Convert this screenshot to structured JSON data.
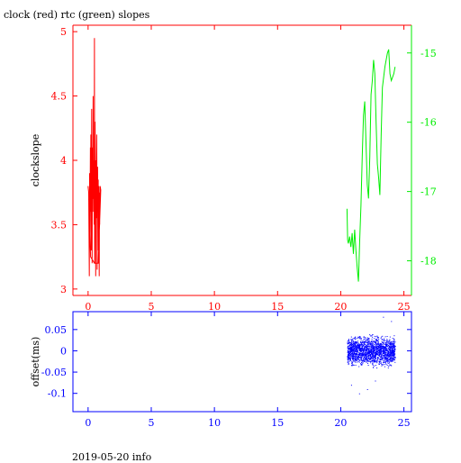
{
  "title": "clock (red) rtc (green) slopes",
  "footer": "2019-05-20 info",
  "colors": {
    "clock": "#ff0000",
    "rtc": "#00ee00",
    "offset": "#0000ff",
    "frame_top_left": "#ff0000",
    "frame_top_right": "#00ee00",
    "frame_bottom": "#0000ff",
    "text": "#000000"
  },
  "chart_data": [
    {
      "type": "line",
      "panel": "top",
      "xlabel": "",
      "ylabel": "clockslope",
      "xlim": [
        -1.2,
        25.6
      ],
      "ylim": [
        2.95,
        5.05
      ],
      "y2lim": [
        -18.5,
        -14.6
      ],
      "xticks": [
        "0",
        "5",
        "10",
        "15",
        "20",
        "25"
      ],
      "yticks_left": [
        "3",
        "3.5",
        "4",
        "4.5",
        "5"
      ],
      "yticks_right": [
        "-15",
        "-16",
        "-17",
        "-18"
      ],
      "grid": false,
      "series": [
        {
          "axis": "left",
          "x": [
            0.0,
            0.05,
            0.1,
            0.12,
            0.15,
            0.18,
            0.2,
            0.22,
            0.25,
            0.28,
            0.3,
            0.32,
            0.35,
            0.38,
            0.4,
            0.42,
            0.45,
            0.48,
            0.5,
            0.52,
            0.55,
            0.58,
            0.6,
            0.62,
            0.65,
            0.68,
            0.7,
            0.72,
            0.75,
            0.78,
            0.8,
            0.82,
            0.85,
            0.88,
            0.9,
            0.92,
            0.95,
            1.0,
            0.8,
            0.5,
            0.2,
            0.1,
            0.05
          ],
          "values": [
            3.8,
            3.75,
            3.1,
            3.9,
            3.4,
            4.1,
            3.6,
            4.2,
            3.3,
            4.4,
            3.8,
            3.2,
            4.1,
            3.6,
            4.5,
            3.7,
            4.0,
            3.5,
            4.95,
            3.2,
            4.3,
            3.9,
            3.1,
            4.0,
            3.55,
            4.2,
            3.8,
            3.15,
            3.95,
            3.6,
            3.85,
            3.3,
            3.8,
            3.1,
            3.75,
            3.5,
            3.8,
            3.77,
            3.2,
            3.2,
            3.25,
            3.6,
            3.7
          ]
        },
        {
          "axis": "right",
          "x": [
            20.5,
            20.55,
            20.6,
            20.7,
            20.8,
            20.9,
            21.0,
            21.1,
            21.2,
            21.3,
            21.4,
            21.5,
            21.6,
            21.7,
            21.8,
            21.9,
            22.0,
            22.1,
            22.2,
            22.3,
            22.4,
            22.5,
            22.6,
            22.7,
            22.8,
            22.9,
            23.0,
            23.1,
            23.2,
            23.3,
            23.4,
            23.5,
            23.6,
            23.7,
            23.8,
            23.9,
            24.0,
            24.1,
            24.2,
            24.3
          ],
          "values": [
            -17.25,
            -17.7,
            -17.75,
            -17.65,
            -17.8,
            -17.6,
            -17.9,
            -17.55,
            -17.85,
            -18.1,
            -18.3,
            -17.7,
            -17.2,
            -16.5,
            -15.9,
            -15.7,
            -16.3,
            -16.9,
            -17.1,
            -16.5,
            -15.6,
            -15.4,
            -15.1,
            -15.3,
            -16.0,
            -16.6,
            -16.8,
            -17.05,
            -16.2,
            -15.5,
            -15.35,
            -15.2,
            -15.1,
            -15.0,
            -14.95,
            -15.3,
            -15.4,
            -15.35,
            -15.3,
            -15.2
          ]
        }
      ]
    },
    {
      "type": "scatter",
      "panel": "bottom",
      "xlabel": "",
      "ylabel": "offset(ms)",
      "xlim": [
        -1.2,
        25.6
      ],
      "ylim": [
        -0.143,
        0.092
      ],
      "xticks": [
        "0",
        "5",
        "10",
        "15",
        "20",
        "25"
      ],
      "yticks": [
        "0.05",
        "0",
        "-0.05",
        "-0.1"
      ],
      "grid": false,
      "series": [
        {
          "x_range": [
            20.5,
            24.3
          ],
          "center": 0.0,
          "spread": 0.03,
          "outliers": [
            -0.08,
            -0.1,
            -0.09,
            -0.07,
            0.08,
            0.07
          ]
        }
      ]
    }
  ]
}
